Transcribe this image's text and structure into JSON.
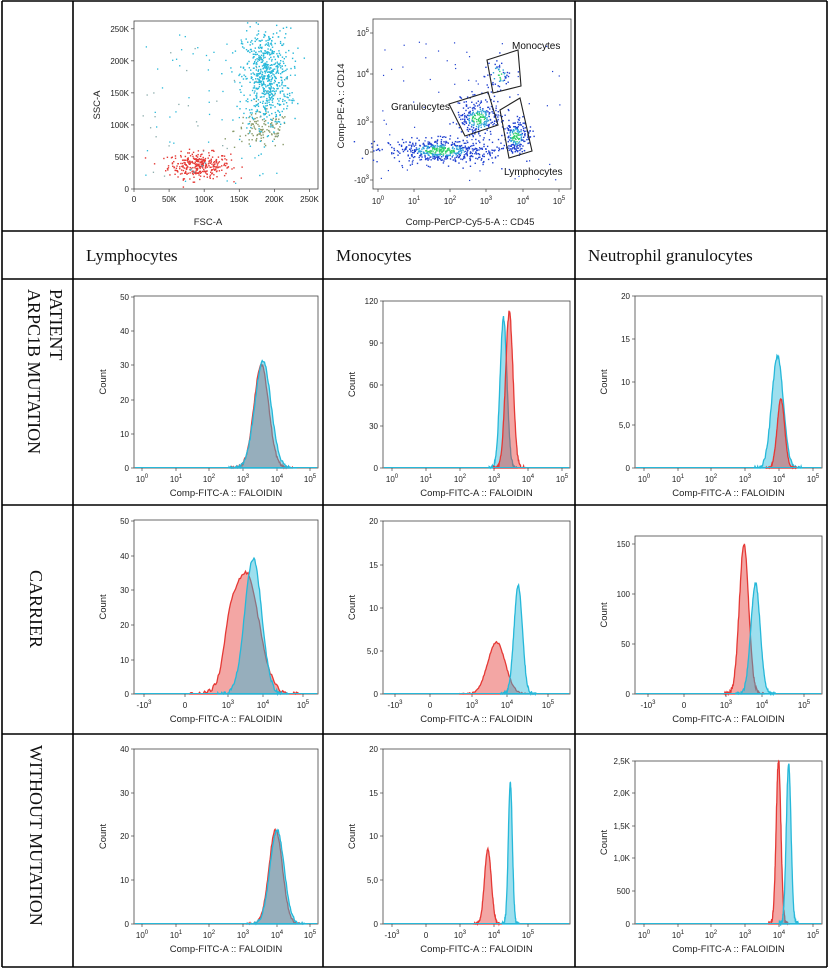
{
  "figure": {
    "column_headers": [
      "Lymphocytes",
      "Monocytes",
      "Neutrophil granulocytes"
    ],
    "row_labels": [
      [
        "PATIENT",
        "ARPC1B MUTATION"
      ],
      [
        "CARRIER"
      ],
      [
        "WITHOUT MUTATION"
      ]
    ],
    "colors": {
      "red": "#e53935",
      "cyan": "#26b8d9",
      "overlap": "#7a8a9a",
      "blue_dot": "#1e3fd0",
      "green_dot": "#2fd06a"
    }
  },
  "chart_data": [
    {
      "id": "gating-fsc-ssc",
      "type": "scatter",
      "xlabel": "FSC-A",
      "ylabel": "SSC-A",
      "xticks": [
        "0",
        "50K",
        "100K",
        "150K",
        "200K",
        "250K"
      ],
      "yticks": [
        "0",
        "50K",
        "100K",
        "150K",
        "200K",
        "250K"
      ],
      "xlim": [
        0,
        262144
      ],
      "ylim": [
        0,
        262144
      ],
      "clusters": [
        {
          "name": "lymphocytes",
          "color": "#e53935",
          "center": [
            92000,
            38000
          ],
          "spread": [
            22000,
            10000
          ],
          "n": 320
        },
        {
          "name": "monocytes",
          "color": "#8a9a6a",
          "center": [
            182000,
            92000
          ],
          "spread": [
            20000,
            14000
          ],
          "n": 120
        },
        {
          "name": "granulocytes",
          "color": "#26b8d9",
          "center": [
            188000,
            175000
          ],
          "spread": [
            17000,
            38000
          ],
          "n": 650
        }
      ]
    },
    {
      "id": "gating-cd45-cd14",
      "type": "scatter",
      "xlabel": "Comp-PerCP-Cy5-5-A :: CD45",
      "ylabel": "Comp-PE-A :: CD14",
      "xticks": [
        "10^0",
        "10^1",
        "10^2",
        "10^3",
        "10^4",
        "10^5"
      ],
      "yticks": [
        "-10^3",
        "0",
        "10^3",
        "10^4",
        "10^5"
      ],
      "gates": [
        "Monocytes",
        "Granulocytes",
        "Lymphocytes"
      ]
    },
    {
      "id": "patient-lymphocytes",
      "type": "histogram",
      "xlabel": "Comp-FITC-A :: FALOIDIN",
      "ylabel": "Count",
      "xaxis": "log",
      "xticks": [
        "10^0",
        "10^1",
        "10^2",
        "10^3",
        "10^4",
        "10^5"
      ],
      "yticks": [
        "0",
        "10",
        "20",
        "30",
        "40",
        "50"
      ],
      "ylim": [
        0,
        50
      ],
      "series": [
        {
          "name": "red",
          "peak_log10": 3.55,
          "width": 0.22,
          "height": 30,
          "color": "#e53935"
        },
        {
          "name": "cyan",
          "peak_log10": 3.6,
          "width": 0.24,
          "height": 31,
          "color": "#26b8d9"
        }
      ]
    },
    {
      "id": "patient-monocytes",
      "type": "histogram",
      "xlabel": "Comp-FITC-A :: FALOIDIN",
      "ylabel": "Count",
      "xaxis": "log",
      "xticks": [
        "10^0",
        "10^1",
        "10^2",
        "10^3",
        "10^4",
        "10^5"
      ],
      "yticks": [
        "0",
        "30",
        "60",
        "90",
        "120"
      ],
      "ylim": [
        0,
        120
      ],
      "series": [
        {
          "name": "cyan",
          "peak_log10": 3.28,
          "width": 0.1,
          "height": 108,
          "color": "#26b8d9"
        },
        {
          "name": "red",
          "peak_log10": 3.45,
          "width": 0.11,
          "height": 112,
          "color": "#e53935"
        }
      ]
    },
    {
      "id": "patient-neutrophils",
      "type": "histogram",
      "xlabel": "Comp-FITC-A :: FALOIDIN",
      "ylabel": "Count",
      "xaxis": "log",
      "xticks": [
        "10^0",
        "10^1",
        "10^2",
        "10^3",
        "10^4",
        "10^5"
      ],
      "yticks": [
        "0",
        "5,0",
        "10",
        "15",
        "20"
      ],
      "ylim": [
        0,
        20
      ],
      "series": [
        {
          "name": "cyan",
          "peak_log10": 3.95,
          "width": 0.17,
          "height": 13,
          "color": "#26b8d9"
        },
        {
          "name": "red",
          "peak_log10": 4.05,
          "width": 0.11,
          "height": 8,
          "color": "#e53935"
        }
      ]
    },
    {
      "id": "carrier-lymphocytes",
      "type": "histogram",
      "xlabel": "Comp-FITC-A :: FALOIDIN",
      "ylabel": "Count",
      "xaxis": "biexponential",
      "xticks": [
        "-10^3",
        "0",
        "10^3",
        "10^4",
        "10^5"
      ],
      "yticks": [
        "0",
        "10",
        "20",
        "30",
        "40",
        "50"
      ],
      "ylim": [
        0,
        50
      ],
      "series": [
        {
          "name": "red",
          "peak_log10": 3.5,
          "width": 0.38,
          "height": 35,
          "color": "#e53935",
          "shoulder": 3.05
        },
        {
          "name": "cyan",
          "peak_log10": 3.72,
          "width": 0.24,
          "height": 39,
          "color": "#26b8d9"
        }
      ]
    },
    {
      "id": "carrier-monocytes",
      "type": "histogram",
      "xlabel": "Comp-FITC-A :: FALOIDIN",
      "ylabel": "Count",
      "xaxis": "biexponential",
      "xticks": [
        "-10^3",
        "0",
        "10^3",
        "10^4",
        "10^5"
      ],
      "yticks": [
        "0",
        "5,0",
        "10",
        "15",
        "20"
      ],
      "ylim": [
        0,
        20
      ],
      "series": [
        {
          "name": "red",
          "peak_log10": 3.7,
          "width": 0.25,
          "height": 6,
          "color": "#e53935"
        },
        {
          "name": "cyan",
          "peak_log10": 4.32,
          "width": 0.12,
          "height": 12.5,
          "color": "#26b8d9"
        }
      ]
    },
    {
      "id": "carrier-neutrophils",
      "type": "histogram",
      "xlabel": "Comp-FITC-A :: FALOIDIN",
      "ylabel": "Count",
      "xaxis": "biexponential",
      "xticks": [
        "-10^3",
        "0",
        "10^3",
        "10^4",
        "10^5"
      ],
      "yticks": [
        "0",
        "50",
        "100",
        "150"
      ],
      "ylim": [
        0,
        160
      ],
      "series": [
        {
          "name": "red",
          "peak_log10": 3.5,
          "width": 0.13,
          "height": 151,
          "color": "#e53935"
        },
        {
          "name": "cyan",
          "peak_log10": 3.82,
          "width": 0.13,
          "height": 112,
          "color": "#26b8d9"
        }
      ]
    },
    {
      "id": "without-lymphocytes",
      "type": "histogram",
      "xlabel": "Comp-FITC-A :: FALOIDIN",
      "ylabel": "Count",
      "xaxis": "log",
      "xticks": [
        "10^0",
        "10^1",
        "10^2",
        "10^3",
        "10^4",
        "10^5"
      ],
      "yticks": [
        "0",
        "10",
        "20",
        "30",
        "40"
      ],
      "ylim": [
        0,
        40
      ],
      "series": [
        {
          "name": "red",
          "peak_log10": 3.98,
          "width": 0.2,
          "height": 21.5,
          "color": "#e53935"
        },
        {
          "name": "cyan",
          "peak_log10": 4.02,
          "width": 0.21,
          "height": 21.5,
          "color": "#26b8d9"
        }
      ]
    },
    {
      "id": "without-monocytes",
      "type": "histogram",
      "xlabel": "Comp-FITC-A :: FALOIDIN",
      "ylabel": "Count",
      "xaxis": "biexponential",
      "xticks": [
        "-10^3",
        "0",
        "10^3",
        "10^4",
        "10^5"
      ],
      "yticks": [
        "0",
        "5,0",
        "10",
        "15",
        "20"
      ],
      "ylim": [
        0,
        20
      ],
      "series": [
        {
          "name": "red",
          "peak_log10": 3.82,
          "width": 0.1,
          "height": 8.5,
          "color": "#e53935"
        },
        {
          "name": "cyan",
          "peak_log10": 4.48,
          "width": 0.06,
          "height": 16,
          "color": "#26b8d9"
        }
      ]
    },
    {
      "id": "without-neutrophils",
      "type": "histogram",
      "xlabel": "Comp-FITC-A :: FALOIDIN",
      "ylabel": "Count",
      "xaxis": "log",
      "xticks": [
        "10^0",
        "10^1",
        "10^2",
        "10^3",
        "10^4",
        "10^5"
      ],
      "yticks": [
        "0",
        "500",
        "1,0K",
        "1,5K",
        "2,0K",
        "2,5K"
      ],
      "ylim": [
        0,
        2500
      ],
      "series": [
        {
          "name": "red",
          "peak_log10": 3.98,
          "width": 0.07,
          "height": 2500,
          "color": "#e53935"
        },
        {
          "name": "cyan",
          "peak_log10": 4.28,
          "width": 0.07,
          "height": 2450,
          "color": "#26b8d9"
        }
      ]
    }
  ]
}
